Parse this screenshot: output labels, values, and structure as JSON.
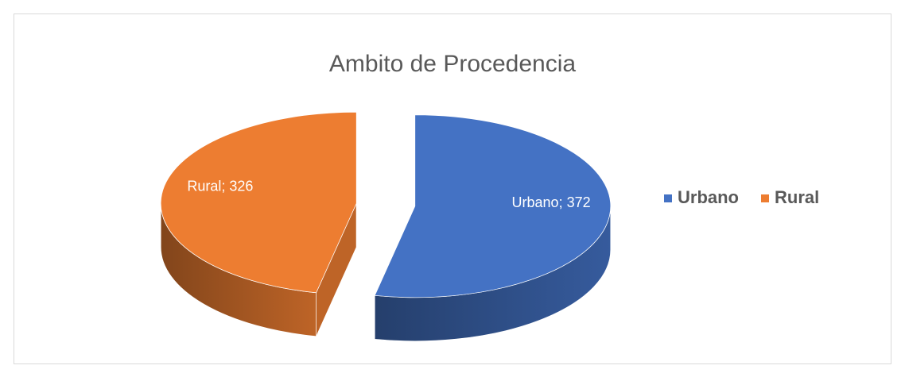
{
  "chart_data": {
    "type": "pie3d",
    "title": "Ambito de Procedencia",
    "categories": [
      "Urbano",
      "Rural"
    ],
    "values": [
      372,
      326
    ],
    "value_labels": [
      "Urbano; 372",
      "Rural; 326"
    ],
    "colors": [
      "#4472c4",
      "#ed7d31"
    ],
    "exploded": true,
    "legend": "right"
  }
}
